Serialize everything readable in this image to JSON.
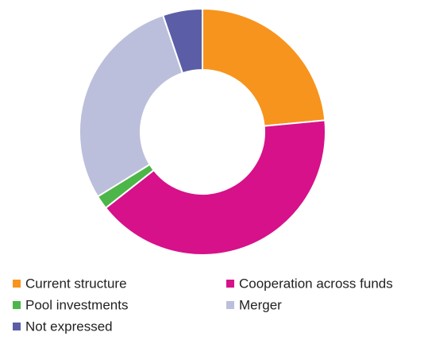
{
  "chart_data": {
    "type": "donut",
    "categories": [
      "Current structure",
      "Cooperation across funds",
      "Pool investments",
      "Merger",
      "Not expressed"
    ],
    "values": [
      23.5,
      40.9,
      1.8,
      28.6,
      5.2
    ],
    "colors": [
      "#f7941d",
      "#d6118a",
      "#4cb648",
      "#bcbfdb",
      "#5b5ea6"
    ]
  }
}
